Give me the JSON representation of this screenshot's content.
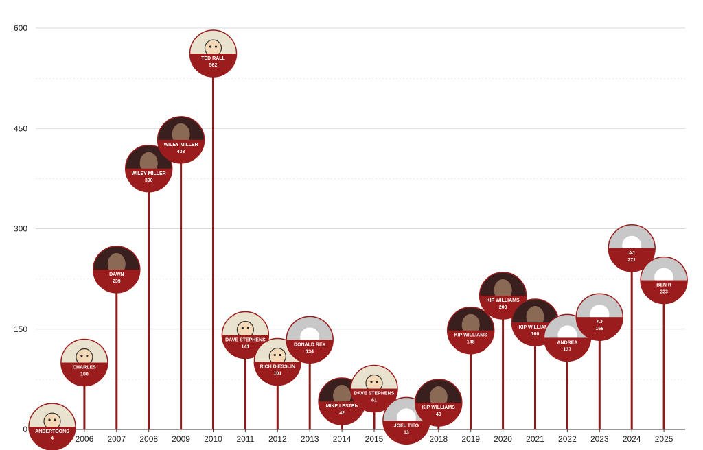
{
  "chart_data": {
    "type": "bar",
    "title": "",
    "xlabel": "",
    "ylabel": "",
    "ylim": [
      0,
      600
    ],
    "yticks": [
      0,
      150,
      300,
      450,
      600
    ],
    "grid": true,
    "categories": [
      "2005",
      "2006",
      "2007",
      "2008",
      "2009",
      "2010",
      "2011",
      "2012",
      "2013",
      "2014",
      "2015",
      "2016",
      "2018",
      "2019",
      "2020",
      "2021",
      "2022",
      "2023",
      "2024",
      "2025"
    ],
    "points": [
      {
        "year": "2005",
        "name": "ANDERTOONS",
        "value": 4,
        "photo": "cartoon"
      },
      {
        "year": "2006",
        "name": "CHARLES",
        "value": 100,
        "photo": "cartoon"
      },
      {
        "year": "2007",
        "name": "DAWN",
        "value": 239,
        "photo": "portrait"
      },
      {
        "year": "2008",
        "name": "WILEY MILLER",
        "value": 390,
        "photo": "portrait"
      },
      {
        "year": "2009",
        "name": "WILEY MILLER",
        "value": 433,
        "photo": "portrait"
      },
      {
        "year": "2010",
        "name": "TED RALL",
        "value": 562,
        "photo": "cartoon"
      },
      {
        "year": "2011",
        "name": "DAVE STEPHENS",
        "value": 141,
        "photo": "cartoon"
      },
      {
        "year": "2012",
        "name": "RICH DIESSLIN",
        "value": 101,
        "photo": "cartoon"
      },
      {
        "year": "2013",
        "name": "DONALD REX",
        "value": 134,
        "photo": "placeholder"
      },
      {
        "year": "2014",
        "name": "MIKE LESTER",
        "value": 42,
        "photo": "portrait"
      },
      {
        "year": "2015",
        "name": "DAVE STEPHENS",
        "value": 61,
        "photo": "cartoon"
      },
      {
        "year": "2016",
        "name": "JOEL TIEG",
        "value": 13,
        "photo": "placeholder"
      },
      {
        "year": "2018",
        "name": "KIP WILLIAMS",
        "value": 40,
        "photo": "portrait"
      },
      {
        "year": "2019",
        "name": "KIP WILLIAMS",
        "value": 148,
        "photo": "portrait"
      },
      {
        "year": "2020",
        "name": "KIP WILLIAMS",
        "value": 200,
        "photo": "portrait"
      },
      {
        "year": "2021",
        "name": "KIP WILLIAMS",
        "value": 160,
        "photo": "portrait"
      },
      {
        "year": "2022",
        "name": "ANDREA",
        "value": 137,
        "photo": "placeholder"
      },
      {
        "year": "2023",
        "name": "AJ",
        "value": 168,
        "photo": "placeholder"
      },
      {
        "year": "2024",
        "name": "AJ",
        "value": 271,
        "photo": "placeholder"
      },
      {
        "year": "2025",
        "name": "BEN R",
        "value": 223,
        "photo": "placeholder"
      }
    ]
  },
  "colors": {
    "stem": "#8b1a1a",
    "band": "#9b1c1c",
    "placeholder": "#c8c8c8",
    "grid": "#d9d9d9",
    "gridMinor": "#e2e2e2",
    "axis": "#333333",
    "portrait": "#8a6a55",
    "portraitDark": "#3a1f1f",
    "cartoon": "#e8e2cf"
  }
}
